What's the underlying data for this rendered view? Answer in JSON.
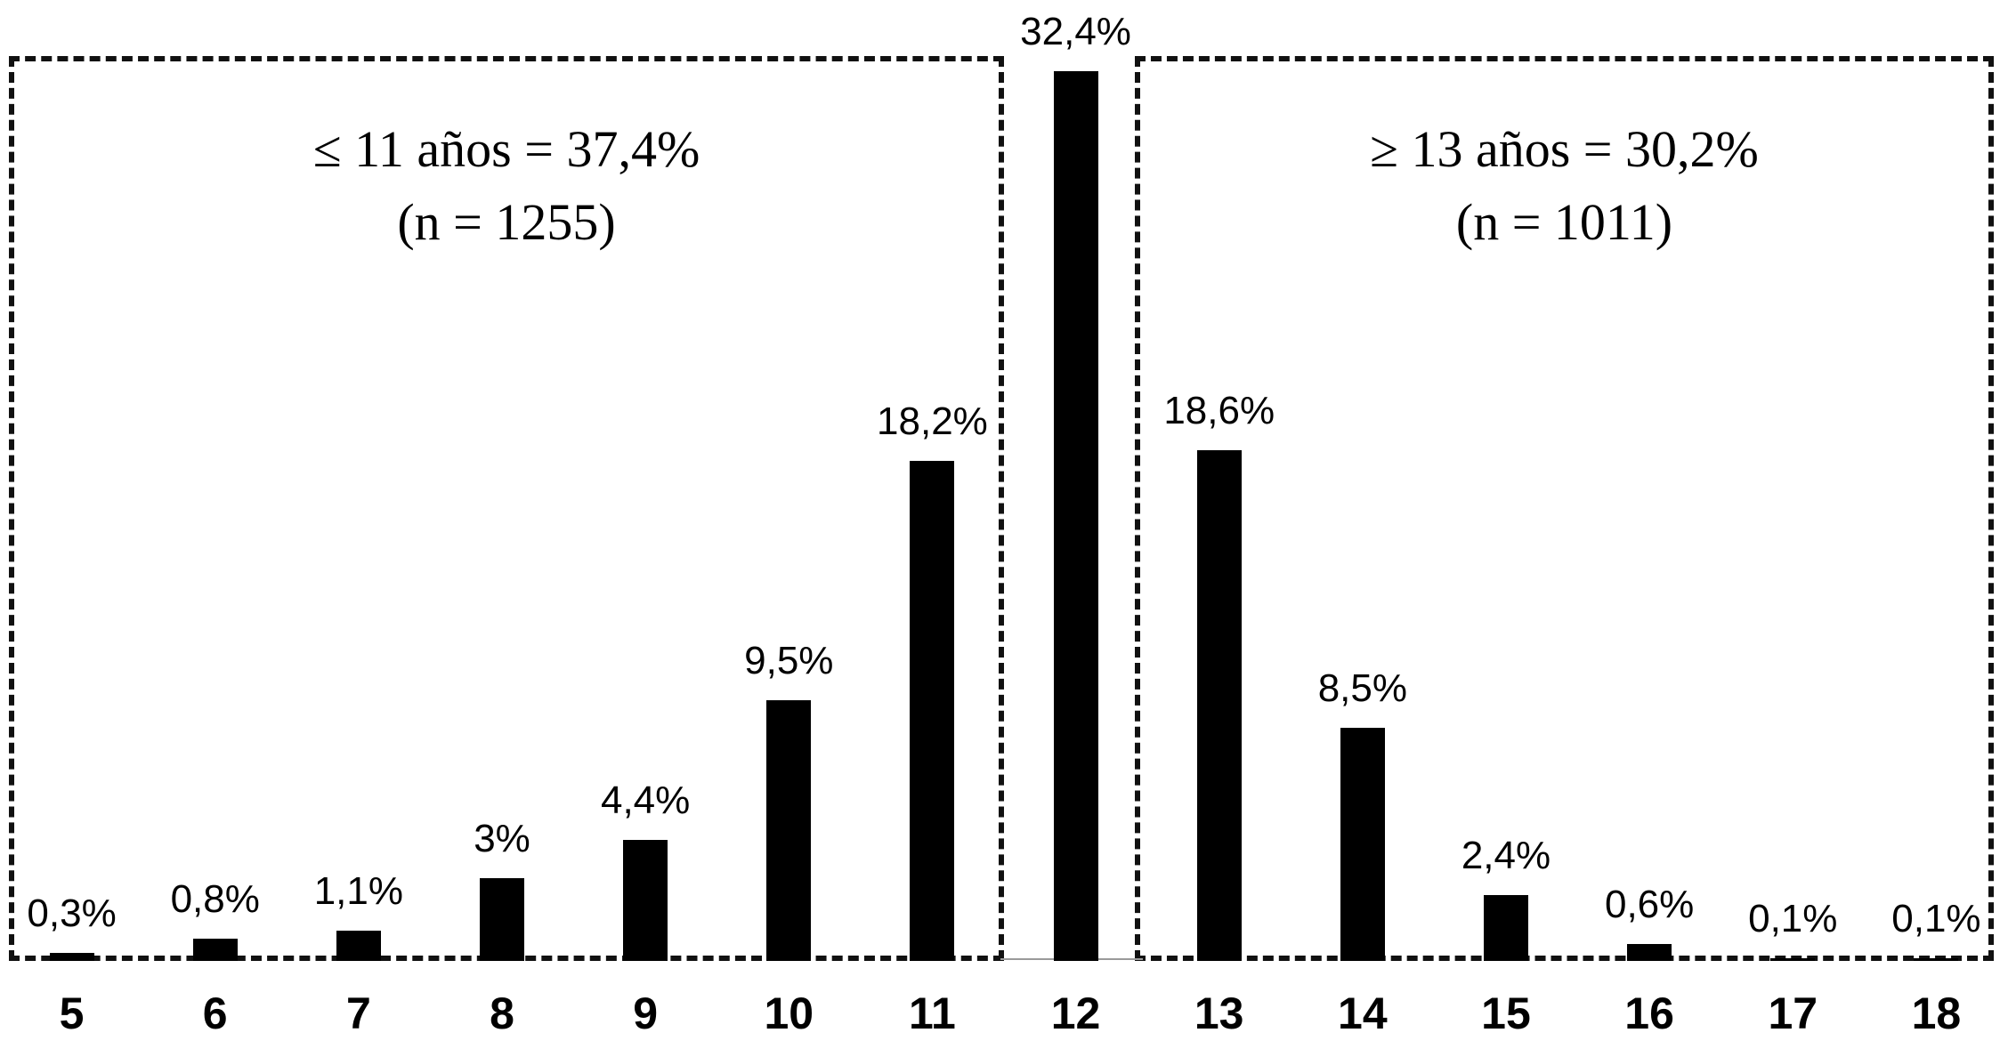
{
  "chart_data": {
    "type": "bar",
    "title": "",
    "xlabel": "",
    "ylabel": "",
    "categories": [
      "5",
      "6",
      "7",
      "8",
      "9",
      "10",
      "11",
      "12",
      "13",
      "14",
      "15",
      "16",
      "17",
      "18"
    ],
    "values": [
      0.3,
      0.8,
      1.1,
      3,
      4.4,
      9.5,
      18.2,
      32.4,
      18.6,
      8.5,
      2.4,
      0.6,
      0.1,
      0.1
    ],
    "value_labels": [
      "0,3%",
      "0,8%",
      "1,1%",
      "3%",
      "4,4%",
      "9,5%",
      "18,2%",
      "32,4%",
      "18,6%",
      "8,5%",
      "2,4%",
      "0,6%",
      "0,1%",
      "0,1%"
    ],
    "ylim": [
      0,
      32.4
    ],
    "grid": false,
    "legend": "none",
    "bar_color": "#000000",
    "annotation_boxes": [
      {
        "side": "left",
        "line1": "≤ 11 años = 37,4%",
        "line2": "(n = 1255)",
        "share": "37,4%",
        "n": "1255",
        "covers_categories": [
          "5",
          "6",
          "7",
          "8",
          "9",
          "10",
          "11"
        ]
      },
      {
        "side": "right",
        "line1": "≥ 13 años = 30,2%",
        "line2": "(n = 1011)",
        "share": "30,2%",
        "n": "1011",
        "covers_categories": [
          "13",
          "14",
          "15",
          "16",
          "17",
          "18"
        ]
      }
    ]
  }
}
